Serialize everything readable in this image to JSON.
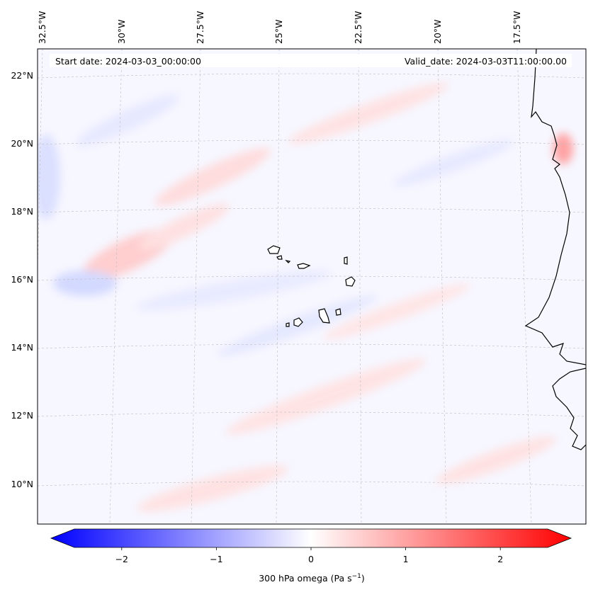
{
  "map": {
    "start_date": "Start date: 2024-03-03_00:00:00",
    "valid_date": "Valid_date: 2024-03-03T11:00:00.00",
    "lon_labels": [
      "32.5°W",
      "30°W",
      "27.5°W",
      "25°W",
      "22.5°W",
      "20°W",
      "17.5°W"
    ],
    "lat_labels": [
      "22°N",
      "20°N",
      "18°N",
      "16°N",
      "14°N",
      "12°N",
      "10°N"
    ],
    "features": [
      "Cabo Verde islands",
      "West African coastline"
    ]
  },
  "colorbar": {
    "label": "300 hPa omega (Pa s",
    "label_sup": "−1",
    "label_close": ")",
    "ticks": [
      "−2",
      "−1",
      "0",
      "1",
      "2"
    ],
    "tick_values": [
      -2,
      -1,
      0,
      1,
      2
    ],
    "min": -2.5,
    "max": 2.5,
    "colors": {
      "neg": "#0000ff",
      "mid": "#ffffff",
      "pos": "#ff0000"
    }
  }
}
